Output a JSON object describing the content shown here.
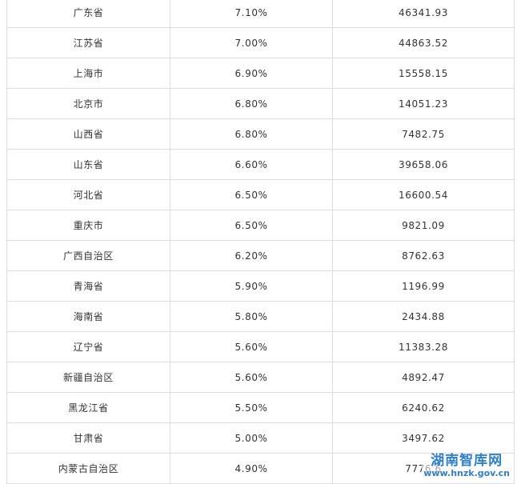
{
  "table": {
    "rows": [
      {
        "region": "广东省",
        "rate": "7.10%",
        "value": "46341.93"
      },
      {
        "region": "江苏省",
        "rate": "7.00%",
        "value": "44863.52"
      },
      {
        "region": "上海市",
        "rate": "6.90%",
        "value": "15558.15"
      },
      {
        "region": "北京市",
        "rate": "6.80%",
        "value": "14051.23"
      },
      {
        "region": "山西省",
        "rate": "6.80%",
        "value": "7482.75"
      },
      {
        "region": "山东省",
        "rate": "6.60%",
        "value": "39658.06"
      },
      {
        "region": "河北省",
        "rate": "6.50%",
        "value": "16600.54"
      },
      {
        "region": "重庆市",
        "rate": "6.50%",
        "value": "9821.09"
      },
      {
        "region": "广西自治区",
        "rate": "6.20%",
        "value": "8762.63"
      },
      {
        "region": "青海省",
        "rate": "5.90%",
        "value": "1196.99"
      },
      {
        "region": "海南省",
        "rate": "5.80%",
        "value": "2434.88"
      },
      {
        "region": "辽宁省",
        "rate": "5.60%",
        "value": "11383.28"
      },
      {
        "region": "新疆自治区",
        "rate": "5.60%",
        "value": "4892.47"
      },
      {
        "region": "黑龙江省",
        "rate": "5.50%",
        "value": "6240.62"
      },
      {
        "region": "甘肃省",
        "rate": "5.00%",
        "value": "3497.62"
      },
      {
        "region": "内蒙古自治区",
        "rate": "4.90%",
        "value": "7776.6"
      }
    ]
  },
  "watermark": {
    "name": "湖南智库网",
    "url": "www.hnzk.gov.cn",
    "color": "#2e7fc9"
  }
}
